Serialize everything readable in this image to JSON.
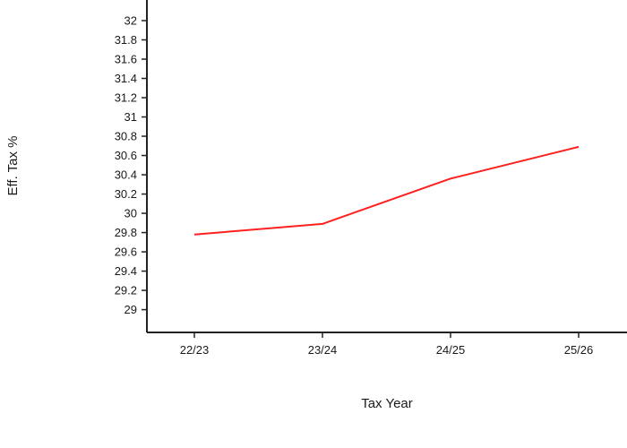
{
  "chart_data": {
    "type": "line",
    "title": "",
    "xlabel": "Tax Year",
    "ylabel": "Eff. Tax %",
    "categories": [
      "22/23",
      "23/24",
      "24/25",
      "25/26"
    ],
    "series": [
      {
        "values": [
          29.78,
          29.89,
          30.36,
          30.69
        ],
        "color": "#ff2020"
      }
    ],
    "yticks": [
      "29",
      "29.2",
      "29.4",
      "29.6",
      "29.8",
      "30",
      "30.2",
      "30.4",
      "30.6",
      "30.8",
      "31",
      "31.2",
      "31.4",
      "31.6",
      "31.8",
      "32"
    ],
    "ylim": [
      28.8,
      32.2
    ],
    "grid": false,
    "legend": "none"
  }
}
